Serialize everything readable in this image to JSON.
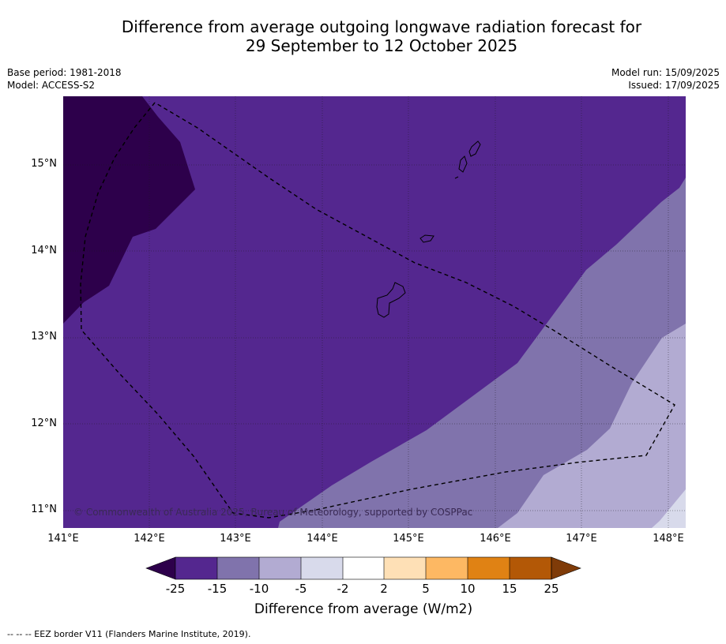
{
  "title": {
    "line1": "Difference from average outgoing longwave radiation forecast for",
    "line2": "29 September to 12 October 2025"
  },
  "meta": {
    "base_period": "Base period: 1981-2018",
    "model": "Model: ACCESS-S2",
    "model_run": "Model run: 15/09/2025",
    "issued": "Issued: 17/09/2025"
  },
  "axes": {
    "lat_labels": [
      "15°N",
      "14°N",
      "13°N",
      "12°N",
      "11°N"
    ],
    "lon_labels": [
      "141°E",
      "142°E",
      "143°E",
      "144°E",
      "145°E",
      "146°E",
      "147°E",
      "148°E"
    ]
  },
  "colorbar": {
    "title": "Difference from average (W/m2)",
    "ticks": [
      "-25",
      "-15",
      "-10",
      "-5",
      "-2",
      "2",
      "5",
      "10",
      "15",
      "25"
    ],
    "colors": [
      "#54278f",
      "#8073ac",
      "#b2abd2",
      "#d8daeb",
      "#ffffff",
      "#fee0b6",
      "#fdb863",
      "#e08214",
      "#b35806"
    ],
    "under_color": "#2d004b",
    "over_color": "#7f3b08"
  },
  "map_colors": {
    "deep": "#2d004b",
    "band1": "#54278f",
    "band2": "#8073ac",
    "band3": "#b2abd2",
    "band4": "#d8daeb"
  },
  "copyright": "© Commonwealth of Australia 2025, Bureau of Meteorology, supported by COSPPac",
  "footnote": "--  --  -- EEZ border V11 (Flanders Marine Institute, 2019)."
}
